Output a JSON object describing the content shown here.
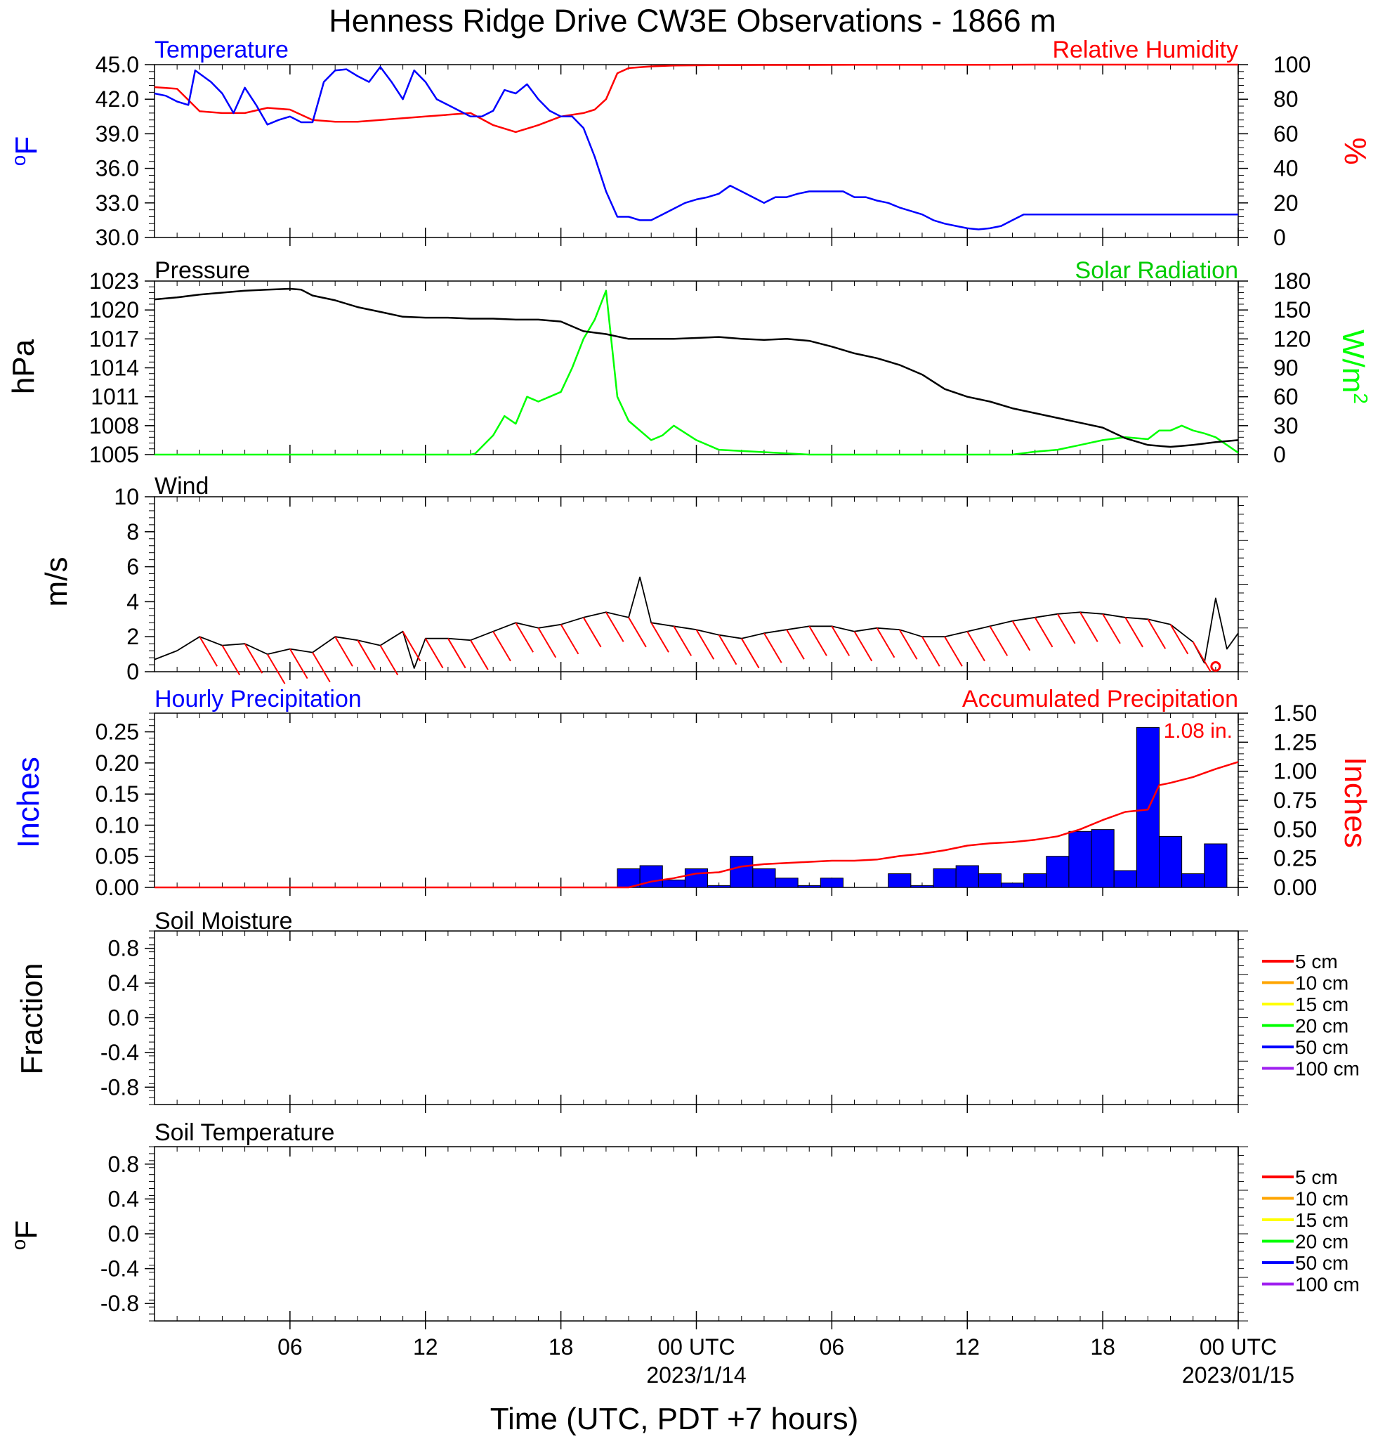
{
  "title": "Henness Ridge Drive CW3E Observations - 1866 m",
  "colors": {
    "blue": "#0000ff",
    "red": "#ff0000",
    "green": "#00ff00",
    "black": "#000000",
    "orange": "#ffa500",
    "yellow": "#ffff00",
    "purple": "#a020f0"
  },
  "x_axis": {
    "label": "Time (UTC, PDT +7 hours)",
    "tick_labels": [
      "06",
      "12",
      "18",
      "00 UTC",
      "06",
      "12",
      "18",
      "00 UTC"
    ],
    "date_labels": [
      "2023/1/14",
      "2023/01/15"
    ]
  },
  "panels": {
    "temp_rh": {
      "left_title": "Temperature",
      "right_title": "Relative Humidity",
      "left_unit": "oF",
      "right_unit": "%"
    },
    "pressure": {
      "left_title": "Pressure",
      "right_title": "Solar Radiation",
      "left_unit": "hPa",
      "right_unit": "W/m2"
    },
    "wind": {
      "left_title": "Wind",
      "left_unit": "m/s"
    },
    "precip": {
      "left_title": "Hourly Precipitation",
      "right_title": "Accumulated Precipitation",
      "left_unit": "Inches",
      "right_unit": "Inches",
      "total_label": "1.08 in."
    },
    "soil_moisture": {
      "left_title": "Soil Moisture",
      "left_unit": "Fraction"
    },
    "soil_temperature": {
      "left_title": "Soil Temperature",
      "left_unit": "oF"
    }
  },
  "soil_legend": [
    "5 cm",
    "10 cm",
    "15 cm",
    "20 cm",
    "50 cm",
    "100 cm"
  ],
  "chart_data": [
    {
      "type": "line",
      "x_unit": "hours since 2023-01-13 00 UTC",
      "xlim": [
        1,
        49
      ],
      "series": [
        {
          "name": "Temperature",
          "axis": "left",
          "color": "#0000ff",
          "x": [
            1,
            1.5,
            2,
            2.5,
            2.8,
            3.5,
            4,
            4.5,
            5,
            5.5,
            6,
            6.5,
            7,
            7.5,
            8,
            8.5,
            9,
            9.5,
            10,
            10.5,
            11,
            11.5,
            12,
            12.5,
            13,
            13.5,
            14,
            14.5,
            15,
            15.5,
            16,
            16.5,
            17,
            17.5,
            18,
            18.5,
            19,
            19.5,
            20,
            20.5,
            21,
            21.5,
            22,
            22.5,
            23,
            23.5,
            24,
            24.5,
            25,
            25.5,
            26,
            26.5,
            27,
            27.5,
            28,
            28.5,
            29,
            29.5,
            30,
            30.5,
            31,
            31.5,
            32,
            32.5,
            33,
            33.5,
            34,
            34.5,
            35,
            35.5,
            36,
            36.5,
            37,
            37.5,
            38,
            38.5,
            39,
            39.5,
            40,
            40.5,
            41,
            41.5,
            42,
            42.5,
            43,
            43.5,
            44,
            44.5,
            45,
            46,
            47,
            48,
            49
          ],
          "y": [
            42.5,
            42.3,
            41.8,
            41.5,
            44.5,
            43.5,
            42.5,
            40.8,
            43,
            41.5,
            39.8,
            40.2,
            40.5,
            40,
            40,
            43.5,
            44.5,
            44.6,
            44,
            43.5,
            44.8,
            43.5,
            42,
            44.5,
            43.5,
            42,
            41.5,
            41,
            40.5,
            40.5,
            41,
            42.8,
            42.5,
            43.3,
            42,
            41,
            40.5,
            40.5,
            39.5,
            37,
            34,
            31.8,
            31.8,
            31.5,
            31.5,
            32,
            32.5,
            33,
            33.3,
            33.5,
            33.8,
            34.5,
            34,
            33.5,
            33,
            33.5,
            33.5,
            33.8,
            34,
            34,
            34,
            34,
            33.5,
            33.5,
            33.2,
            33,
            32.6,
            32.3,
            32,
            31.5,
            31.2,
            31,
            30.8,
            30.7,
            30.8,
            31,
            31.5,
            32,
            32,
            32,
            32,
            32,
            32,
            32,
            32,
            32,
            32,
            32,
            32,
            32,
            32,
            32,
            32
          ]
        },
        {
          "name": "Relative Humidity",
          "axis": "right",
          "color": "#ff0000",
          "x": [
            1,
            2,
            3,
            4,
            5,
            6,
            7,
            8,
            9,
            10,
            11,
            12,
            13,
            14,
            15,
            16,
            17,
            18,
            19,
            20,
            20.5,
            21,
            21.5,
            22,
            23,
            24,
            26,
            28,
            30,
            32,
            34,
            36,
            38,
            40,
            42,
            44,
            46,
            49
          ],
          "y": [
            87,
            86,
            73,
            72,
            72,
            75,
            74,
            68,
            67,
            67,
            68,
            69,
            70,
            71,
            72,
            65,
            61,
            65,
            70,
            72,
            74,
            80,
            95,
            98,
            99,
            99.5,
            99.7,
            99.8,
            99.8,
            99.9,
            99.9,
            99.9,
            99.9,
            100,
            100,
            100,
            100,
            100
          ]
        }
      ],
      "left_ylim": [
        30,
        45
      ],
      "left_ticks": [
        "30.0",
        "33.0",
        "36.0",
        "39.0",
        "42.0",
        "45.0"
      ],
      "right_ylim": [
        0,
        100
      ],
      "right_ticks": [
        "0",
        "20",
        "40",
        "60",
        "80",
        "100"
      ]
    },
    {
      "type": "line",
      "x_unit": "hours since 2023-01-13 00 UTC",
      "xlim": [
        1,
        49
      ],
      "series": [
        {
          "name": "Pressure",
          "axis": "left",
          "color": "#000000",
          "x": [
            1,
            2,
            3,
            4,
            5,
            6,
            7,
            7.5,
            8,
            9,
            10,
            11,
            12,
            13,
            14,
            15,
            16,
            17,
            18,
            19,
            20,
            21,
            22,
            23,
            24,
            25,
            26,
            27,
            28,
            29,
            30,
            31,
            32,
            33,
            34,
            35,
            36,
            37,
            38,
            39,
            40,
            41,
            42,
            43,
            44,
            45,
            46,
            47,
            48,
            49
          ],
          "y": [
            1021.1,
            1021.3,
            1021.6,
            1021.8,
            1022,
            1022.1,
            1022.2,
            1022.1,
            1021.5,
            1021,
            1020.3,
            1019.8,
            1019.3,
            1019.2,
            1019.2,
            1019.1,
            1019.1,
            1019,
            1019,
            1018.8,
            1017.8,
            1017.5,
            1017,
            1017,
            1017,
            1017.1,
            1017.2,
            1017,
            1016.9,
            1017,
            1016.8,
            1016.2,
            1015.5,
            1015,
            1014.3,
            1013.3,
            1011.8,
            1011,
            1010.5,
            1009.8,
            1009.3,
            1008.8,
            1008.3,
            1007.8,
            1006.7,
            1006,
            1005.8,
            1006,
            1006.3,
            1006.5
          ]
        },
        {
          "name": "Solar Radiation",
          "axis": "right",
          "color": "#00ff00",
          "x": [
            1,
            15,
            15.2,
            16,
            16.5,
            17,
            17.5,
            18,
            18.5,
            19,
            19.5,
            20,
            20.5,
            21,
            21.5,
            22,
            22.5,
            23,
            23.5,
            24,
            25,
            26,
            30,
            38,
            39,
            40,
            41,
            42,
            43,
            44,
            45,
            45.5,
            46,
            46.5,
            47,
            47.5,
            48,
            48.5,
            49
          ],
          "y": [
            0,
            0,
            1,
            20,
            40,
            32,
            60,
            55,
            60,
            65,
            90,
            120,
            140,
            170,
            60,
            35,
            25,
            15,
            20,
            30,
            15,
            5,
            0,
            0,
            0,
            3,
            5,
            10,
            15,
            18,
            16,
            25,
            25,
            30,
            25,
            22,
            18,
            10,
            2
          ]
        }
      ],
      "left_ylim": [
        1005,
        1023
      ],
      "left_ticks": [
        "1005",
        "1008",
        "1011",
        "1014",
        "1017",
        "1020",
        "1023"
      ],
      "right_ylim": [
        0,
        180
      ],
      "right_ticks": [
        "0",
        "30",
        "60",
        "90",
        "120",
        "150",
        "180"
      ]
    },
    {
      "type": "line",
      "x_unit": "hours since 2023-01-13 00 UTC",
      "xlim": [
        1,
        49
      ],
      "series": [
        {
          "name": "Wind",
          "color": "#000000",
          "x": [
            1,
            2,
            3,
            4,
            5,
            6,
            7,
            8,
            9,
            10,
            11,
            12,
            12.5,
            13,
            14,
            15,
            16,
            17,
            18,
            19,
            20,
            21,
            22,
            22.5,
            23,
            24,
            25,
            26,
            27,
            28,
            29,
            30,
            31,
            32,
            33,
            34,
            35,
            36,
            37,
            38,
            39,
            40,
            41,
            42,
            43,
            44,
            45,
            46,
            47,
            47.5,
            48,
            48.5,
            49
          ],
          "y": [
            0.7,
            1.2,
            2,
            1.5,
            1.6,
            1,
            1.3,
            1.1,
            2,
            1.8,
            1.5,
            2.3,
            0.2,
            1.9,
            1.9,
            1.8,
            2.3,
            2.8,
            2.5,
            2.7,
            3.1,
            3.4,
            3.1,
            5.4,
            2.8,
            2.6,
            2.4,
            2.1,
            1.9,
            2.2,
            2.4,
            2.6,
            2.6,
            2.3,
            2.5,
            2.4,
            2,
            2,
            2.3,
            2.6,
            2.9,
            3.1,
            3.3,
            3.4,
            3.3,
            3.1,
            3,
            2.7,
            1.7,
            0.5,
            4.2,
            1.3,
            2.2
          ]
        }
      ],
      "ylim": [
        0,
        10
      ],
      "ticks": [
        "0",
        "2",
        "4",
        "6",
        "8",
        "10"
      ],
      "wind_barb_hours": [
        3,
        4,
        5,
        6,
        7,
        8,
        9,
        10,
        11,
        12,
        13,
        14,
        15,
        16,
        17,
        18,
        19,
        20,
        21,
        22,
        23,
        24,
        25,
        26,
        27,
        28,
        29,
        30,
        31,
        32,
        33,
        34,
        35,
        36,
        37,
        38,
        39,
        40,
        41,
        42,
        43,
        44,
        45,
        46,
        47
      ]
    },
    {
      "type": "bar",
      "x_unit": "hours since 2023-01-13 00 UTC",
      "xlim": [
        1,
        49
      ],
      "series": [
        {
          "name": "Hourly Precipitation",
          "axis": "left",
          "color": "#0000ff",
          "x": [
            22,
            23,
            24,
            25,
            26,
            27,
            28,
            29,
            30,
            31,
            32,
            33,
            34,
            35,
            36,
            37,
            38,
            39,
            40,
            41,
            42,
            43,
            44,
            45,
            46,
            47,
            48
          ],
          "values": [
            0.03,
            0.035,
            0.012,
            0.03,
            0.003,
            0.05,
            0.03,
            0.015,
            0.003,
            0.015,
            0.0,
            0.0,
            0.022,
            0.003,
            0.03,
            0.035,
            0.022,
            0.007,
            0.022,
            0.05,
            0.09,
            0.093,
            0.027,
            0.257,
            0.082,
            0.022,
            0.07
          ]
        },
        {
          "name": "Accumulated Precipitation",
          "axis": "right",
          "color": "#ff0000",
          "type": "line",
          "x": [
            1,
            22,
            23,
            24,
            25,
            26,
            27,
            28,
            29,
            30,
            31,
            32,
            33,
            34,
            35,
            36,
            37,
            38,
            39,
            40,
            41,
            42,
            43,
            44,
            45,
            45.5,
            46,
            47,
            48,
            49
          ],
          "values": [
            0,
            0,
            0.05,
            0.08,
            0.12,
            0.13,
            0.18,
            0.2,
            0.21,
            0.22,
            0.23,
            0.23,
            0.24,
            0.27,
            0.29,
            0.32,
            0.36,
            0.38,
            0.39,
            0.41,
            0.44,
            0.5,
            0.58,
            0.65,
            0.67,
            0.88,
            0.9,
            0.95,
            1.02,
            1.08
          ]
        }
      ],
      "left_ylim": [
        0,
        0.28
      ],
      "left_ticks": [
        "0.00",
        "0.05",
        "0.10",
        "0.15",
        "0.20",
        "0.25"
      ],
      "right_ylim": [
        0,
        1.5
      ],
      "right_ticks": [
        "0.00",
        "0.25",
        "0.50",
        "0.75",
        "1.00",
        "1.25",
        "1.50"
      ]
    },
    {
      "type": "line",
      "series": [],
      "ylim": [
        -1,
        1
      ],
      "ticks": [
        "-0.8",
        "-0.4",
        "0.0",
        "0.4",
        "0.8"
      ]
    },
    {
      "type": "line",
      "series": [],
      "ylim": [
        -1,
        1
      ],
      "ticks": [
        "-0.8",
        "-0.4",
        "0.0",
        "0.4",
        "0.8"
      ]
    }
  ]
}
